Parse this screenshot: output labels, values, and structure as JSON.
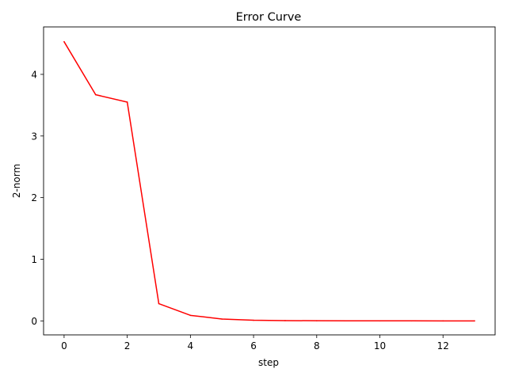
{
  "chart_data": {
    "type": "line",
    "title": "Error Curve",
    "xlabel": "step",
    "ylabel": "2-norm",
    "xlim": [
      -0.65,
      13.65
    ],
    "ylim": [
      -0.227,
      4.77
    ],
    "xticks": [
      0,
      2,
      4,
      6,
      8,
      10,
      12
    ],
    "yticks": [
      0,
      1,
      2,
      3,
      4
    ],
    "grid": false,
    "legend": "none",
    "series": [
      {
        "color": "#ff0000",
        "x": [
          0,
          1,
          2,
          3,
          4,
          5,
          6,
          7,
          8,
          9,
          10,
          11,
          12,
          13
        ],
        "y": [
          4.53,
          3.67,
          3.55,
          0.28,
          0.09,
          0.03,
          0.01,
          0.005,
          0.002,
          0.001,
          0.0005,
          0.0002,
          0.0001,
          0.0
        ]
      }
    ]
  }
}
